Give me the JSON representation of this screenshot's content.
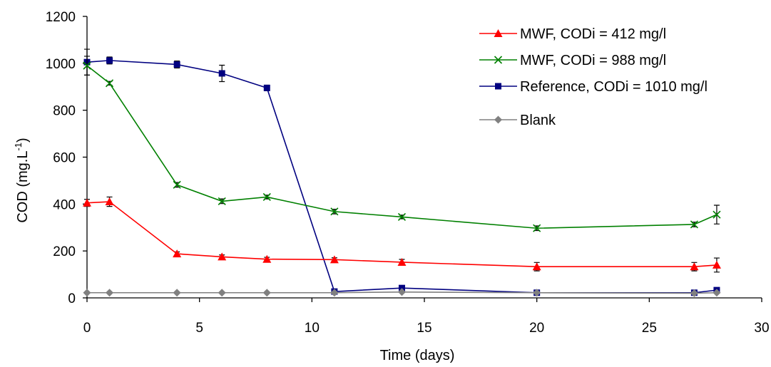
{
  "chart_data": {
    "type": "line",
    "title": "",
    "xlabel": "Time (days)",
    "ylabel": "COD (mg.L-1)",
    "ylabel_main": "COD (mg.L",
    "ylabel_sup": "-1",
    "ylabel_end": ")",
    "xlim": [
      0,
      30
    ],
    "ylim": [
      0,
      1200
    ],
    "xticks": [
      0,
      5,
      10,
      15,
      20,
      25,
      30
    ],
    "yticks": [
      0,
      200,
      400,
      600,
      800,
      1000,
      1200
    ],
    "grid": false,
    "legend_position": "top-right",
    "series": [
      {
        "name": "MWF, CODi = 412 mg/l",
        "color": "#ff0000",
        "marker": "triangle",
        "x": [
          0,
          1,
          4,
          6,
          8,
          11,
          14,
          20,
          27,
          28
        ],
        "y": [
          405,
          410,
          188,
          175,
          165,
          163,
          152,
          133,
          133,
          140
        ],
        "err": [
          15,
          20,
          8,
          8,
          8,
          8,
          12,
          18,
          18,
          30
        ]
      },
      {
        "name": "MWF, CODi = 988 mg/l",
        "color": "#008000",
        "marker": "x",
        "x": [
          0,
          1,
          4,
          6,
          8,
          11,
          14,
          20,
          27,
          28
        ],
        "y": [
          990,
          915,
          482,
          412,
          430,
          368,
          345,
          297,
          313,
          355
        ],
        "err": [
          40,
          8,
          10,
          10,
          8,
          10,
          8,
          10,
          10,
          40
        ]
      },
      {
        "name": "Reference, CODi = 1010 mg/l",
        "color": "#000080",
        "marker": "square",
        "x": [
          0,
          1,
          4,
          6,
          8,
          11,
          14,
          20,
          27,
          28
        ],
        "y": [
          1005,
          1012,
          995,
          957,
          895,
          27,
          42,
          22,
          22,
          33
        ],
        "err": [
          55,
          15,
          15,
          35,
          12,
          8,
          8,
          5,
          5,
          5
        ]
      },
      {
        "name": "Blank",
        "color": "#808080",
        "marker": "diamond",
        "x": [
          0,
          1,
          4,
          6,
          8,
          11,
          14,
          20,
          27,
          28
        ],
        "y": [
          22,
          22,
          22,
          22,
          22,
          22,
          25,
          22,
          20,
          22
        ],
        "err": [
          0,
          0,
          0,
          0,
          0,
          0,
          0,
          0,
          0,
          0
        ]
      }
    ]
  }
}
